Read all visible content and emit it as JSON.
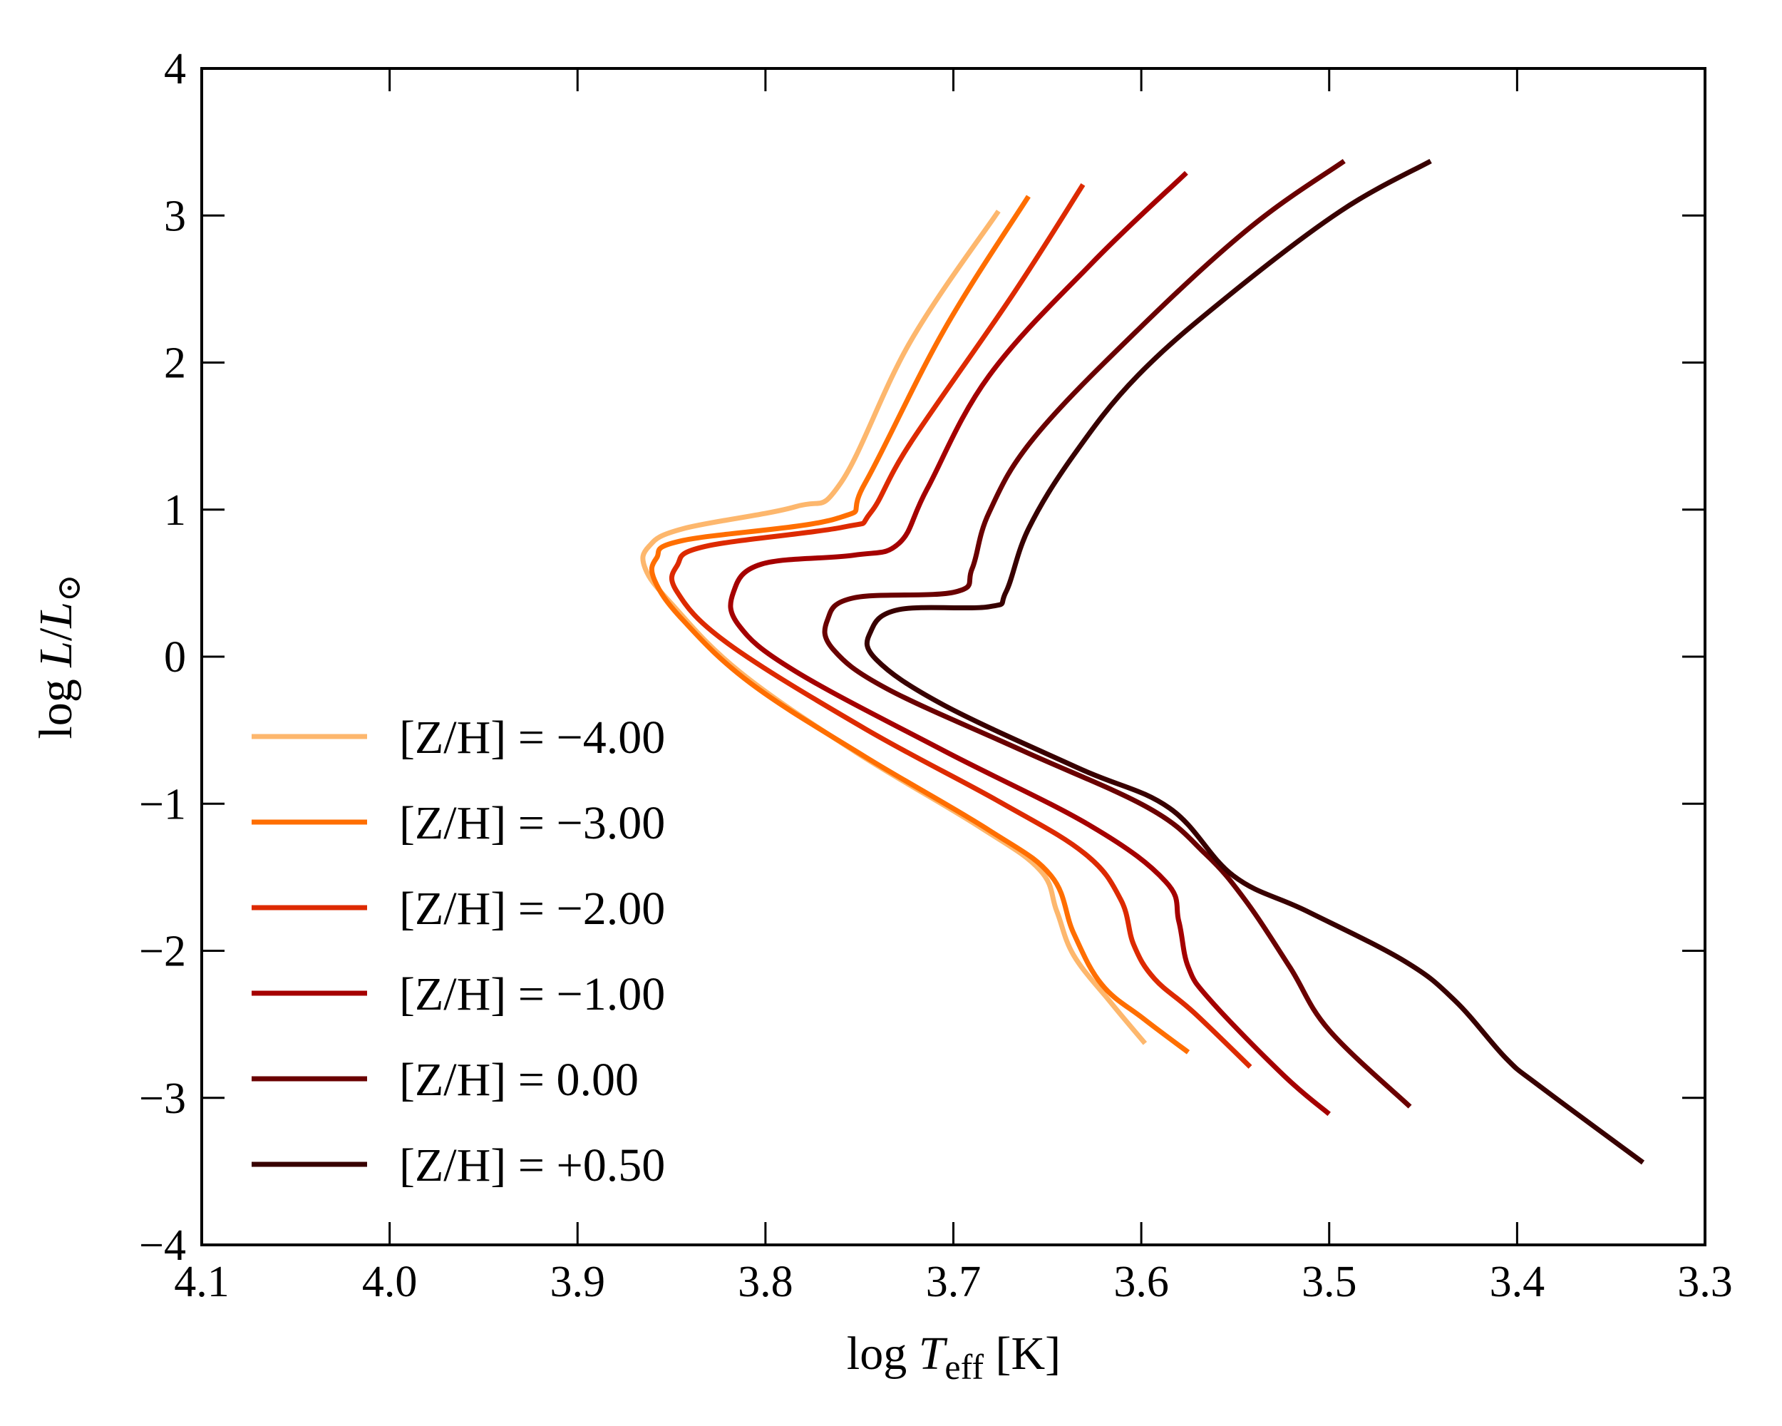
{
  "chart_data": {
    "type": "line",
    "title": "",
    "xlabel": "log T_eff [K]",
    "xlabel_parts": {
      "prefix": "log ",
      "var": "T",
      "sub": "eff",
      "suffix": " [K]"
    },
    "ylabel": "log L/L⊙",
    "ylabel_parts": {
      "prefix": "log ",
      "var": "L",
      "slash": "/",
      "var2": "L",
      "sub": "⊙"
    },
    "xlim": [
      4.1,
      3.3
    ],
    "ylim": [
      -4,
      4
    ],
    "x_inverted": true,
    "grid": false,
    "legend_position": "lower-left",
    "xticks": [
      4.1,
      4.0,
      3.9,
      3.8,
      3.7,
      3.6,
      3.5,
      3.4,
      3.3
    ],
    "xtick_labels": [
      "4.1",
      "4.0",
      "3.9",
      "3.8",
      "3.7",
      "3.6",
      "3.5",
      "3.4",
      "3.3"
    ],
    "yticks": [
      4,
      3,
      2,
      1,
      0,
      -1,
      -2,
      -3,
      -4
    ],
    "ytick_labels": [
      "4",
      "3",
      "2",
      "1",
      "0",
      "−1",
      "−2",
      "−3",
      "−4"
    ],
    "series": [
      {
        "name": "[Z/H] = −4.00",
        "color": "#fdb76d",
        "x": [
          3.676,
          3.723,
          3.76,
          3.784,
          3.844,
          3.862,
          3.864,
          3.85,
          3.814,
          3.753,
          3.687,
          3.654,
          3.645,
          3.636,
          3.617,
          3.598
        ],
        "y": [
          3.03,
          2.14,
          1.18,
          1.02,
          0.87,
          0.75,
          0.6,
          0.36,
          -0.1,
          -0.64,
          -1.15,
          -1.45,
          -1.73,
          -2.03,
          -2.34,
          -2.63
        ]
      },
      {
        "name": "[Z/H] = −3.00",
        "color": "#ff6e00",
        "x": [
          3.66,
          3.705,
          3.747,
          3.762,
          3.844,
          3.858,
          3.859,
          3.844,
          3.808,
          3.747,
          3.681,
          3.648,
          3.636,
          3.621,
          3.599,
          3.575
        ],
        "y": [
          3.13,
          2.22,
          1.18,
          0.94,
          0.79,
          0.67,
          0.52,
          0.25,
          -0.18,
          -0.68,
          -1.18,
          -1.49,
          -1.88,
          -2.23,
          -2.46,
          -2.69
        ]
      },
      {
        "name": "[Z/H] = −2.00",
        "color": "#dd2a00",
        "x": [
          3.631,
          3.669,
          3.723,
          3.744,
          3.759,
          3.832,
          3.847,
          3.847,
          3.82,
          3.747,
          3.675,
          3.63,
          3.611,
          3.604,
          3.593,
          3.572,
          3.542
        ],
        "y": [
          3.21,
          2.45,
          1.45,
          0.98,
          0.88,
          0.75,
          0.62,
          0.44,
          0.09,
          -0.49,
          -0.99,
          -1.34,
          -1.65,
          -1.96,
          -2.19,
          -2.42,
          -2.79
        ]
      },
      {
        "name": "[Z/H] = −1.00",
        "color": "#a50000",
        "x": [
          3.576,
          3.626,
          3.681,
          3.714,
          3.729,
          3.753,
          3.802,
          3.817,
          3.814,
          3.784,
          3.705,
          3.627,
          3.587,
          3.58,
          3.575,
          3.563,
          3.524,
          3.5
        ],
        "y": [
          3.29,
          2.68,
          1.91,
          1.14,
          0.77,
          0.69,
          0.63,
          0.44,
          0.21,
          -0.1,
          -0.64,
          -1.15,
          -1.53,
          -1.8,
          -2.11,
          -2.34,
          -2.85,
          -3.11
        ]
      },
      {
        "name": "[Z/H] = 0.00",
        "color": "#6a0000",
        "x": [
          3.492,
          3.542,
          3.602,
          3.657,
          3.681,
          3.69,
          3.699,
          3.753,
          3.767,
          3.764,
          3.735,
          3.663,
          3.596,
          3.566,
          3.545,
          3.521,
          3.5,
          3.457
        ],
        "y": [
          3.37,
          2.92,
          2.22,
          1.49,
          0.98,
          0.6,
          0.44,
          0.4,
          0.25,
          0.05,
          -0.22,
          -0.64,
          -1.03,
          -1.34,
          -1.65,
          -2.11,
          -2.54,
          -3.06
        ]
      },
      {
        "name": "[Z/H] = +0.50",
        "color": "#380000",
        "x": [
          3.446,
          3.494,
          3.554,
          3.602,
          3.636,
          3.66,
          3.672,
          3.681,
          3.729,
          3.744,
          3.741,
          3.705,
          3.633,
          3.585,
          3.551,
          3.512,
          3.46,
          3.433,
          3.406,
          3.388,
          3.333
        ],
        "y": [
          3.37,
          3.03,
          2.45,
          1.91,
          1.37,
          0.87,
          0.44,
          0.34,
          0.32,
          0.17,
          -0.02,
          -0.33,
          -0.76,
          -1.03,
          -1.49,
          -1.73,
          -2.07,
          -2.34,
          -2.73,
          -2.92,
          -3.44
        ]
      }
    ]
  }
}
